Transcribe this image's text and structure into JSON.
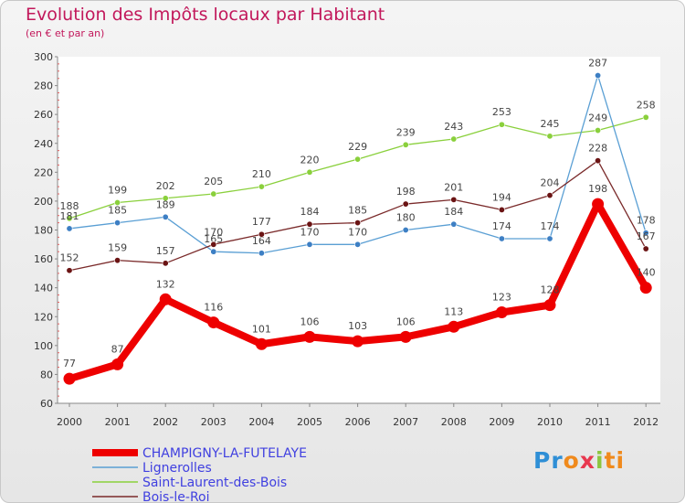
{
  "title": "Evolution des Impôts locaux par Habitant",
  "subtitle": "(en € et par an)",
  "logo": {
    "parts": [
      "Pr",
      "o",
      "x",
      "i",
      "ti"
    ]
  },
  "chart_data": {
    "type": "line",
    "title": "Evolution des Impôts locaux par Habitant",
    "subtitle": "(en € et par an)",
    "xlabel": "",
    "ylabel": "",
    "x": [
      "2000",
      "2001",
      "2002",
      "2003",
      "2004",
      "2005",
      "2006",
      "2007",
      "2008",
      "2009",
      "2010",
      "2011",
      "2012"
    ],
    "ylim": [
      60,
      300
    ],
    "yticks": [
      60,
      80,
      100,
      120,
      140,
      160,
      180,
      200,
      220,
      240,
      260,
      280,
      300
    ],
    "grid": false,
    "legend_position": "bottom-left",
    "series": [
      {
        "name": "Saint-Laurent-des-Bois",
        "color": "#8ad03c",
        "dot": "#8ad03c",
        "values": [
          188,
          199,
          202,
          205,
          210,
          220,
          229,
          239,
          243,
          253,
          245,
          249,
          258
        ]
      },
      {
        "name": "Lignerolles",
        "color": "#5a9fd4",
        "dot": "#3d7fc4",
        "values": [
          181,
          185,
          189,
          165,
          164,
          170,
          170,
          180,
          184,
          174,
          174,
          287,
          178
        ]
      },
      {
        "name": "Bois-le-Roi",
        "color": "#7a2a2a",
        "dot": "#6b1414",
        "values": [
          152,
          159,
          157,
          170,
          177,
          184,
          185,
          198,
          201,
          194,
          204,
          228,
          167
        ]
      },
      {
        "name": "CHAMPIGNY-LA-FUTELAYE",
        "color": "#ee0000",
        "dot": "#ee0000",
        "values": [
          77,
          87,
          132,
          116,
          101,
          106,
          103,
          106,
          113,
          123,
          128,
          198,
          140
        ]
      }
    ],
    "legend_order": [
      "CHAMPIGNY-LA-FUTELAYE",
      "Lignerolles",
      "Saint-Laurent-des-Bois",
      "Bois-le-Roi"
    ]
  }
}
